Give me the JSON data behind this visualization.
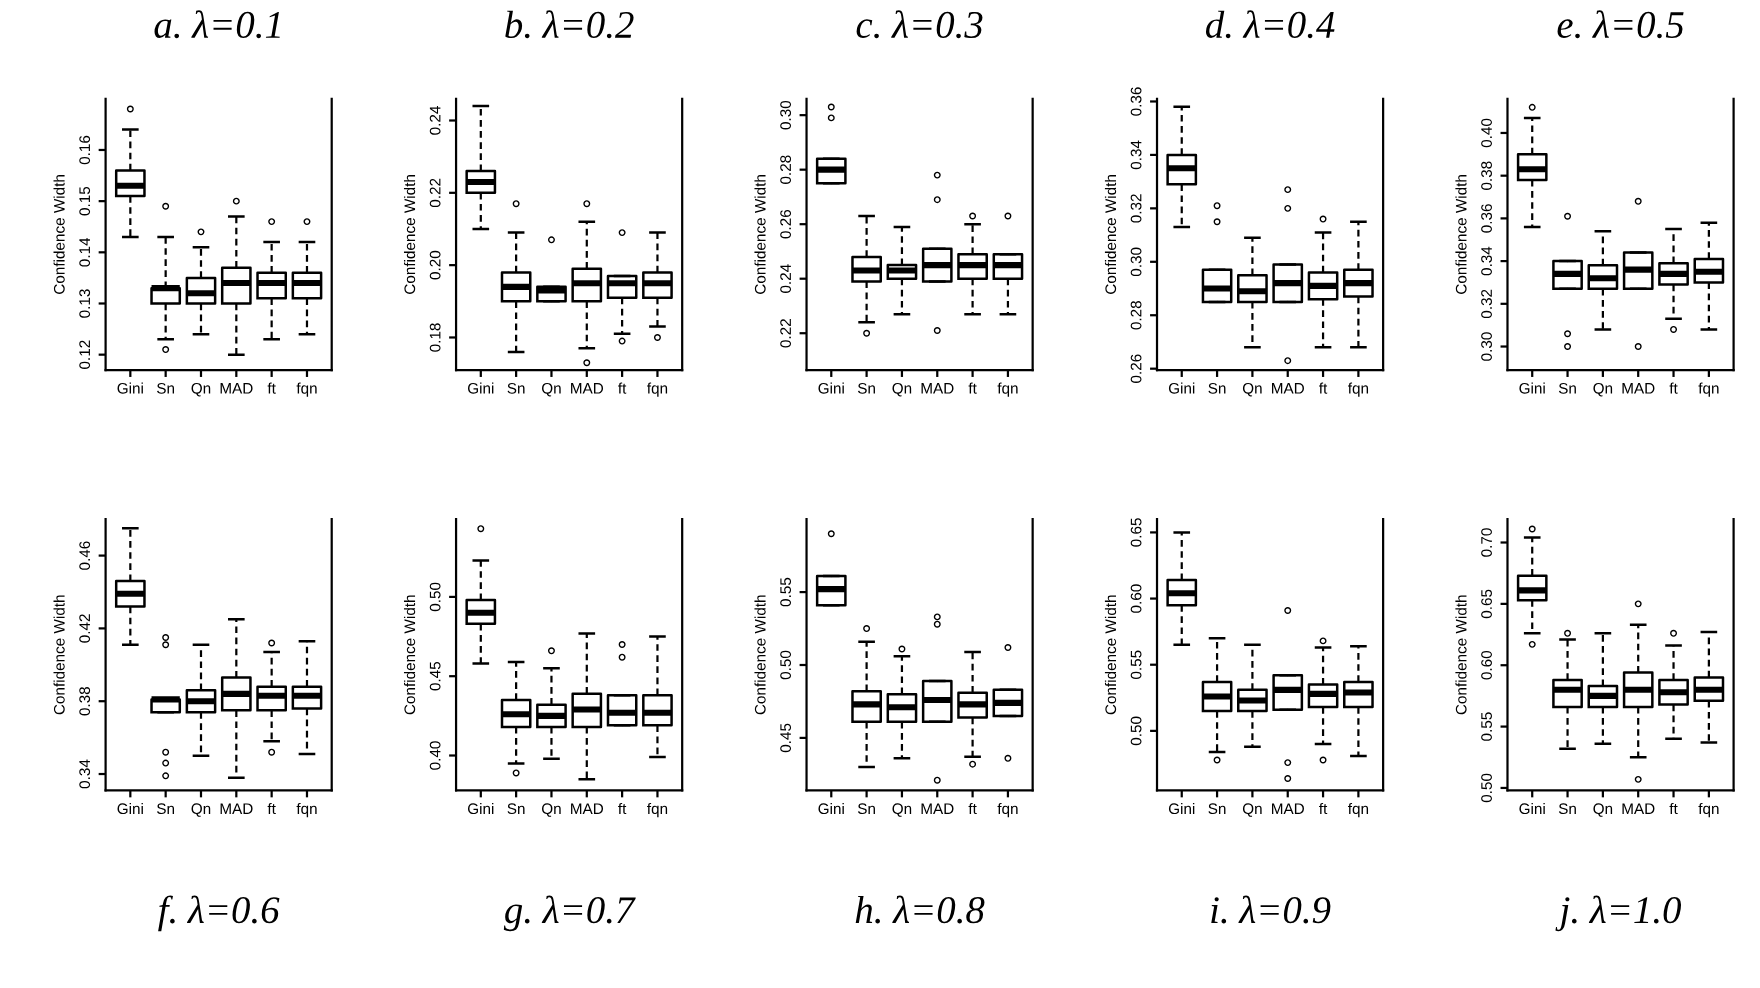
{
  "chart_data": [
    {
      "type": "box",
      "title": "a. λ=0.1",
      "ylabel": "Confidence Width",
      "categories": [
        "Gini",
        "Sn",
        "Qn",
        "MAD",
        "ft",
        "fqn"
      ],
      "ylim": [
        0.117,
        0.17
      ],
      "yticks": [
        0.12,
        0.13,
        0.14,
        0.15,
        0.16
      ],
      "boxes": [
        {
          "low": 0.143,
          "q1": 0.151,
          "median": 0.153,
          "q3": 0.156,
          "high": 0.164,
          "outliers": [
            0.168
          ]
        },
        {
          "low": 0.123,
          "q1": 0.13,
          "median": 0.133,
          "q3": 0.133,
          "high": 0.143,
          "outliers": [
            0.149,
            0.121
          ]
        },
        {
          "low": 0.124,
          "q1": 0.13,
          "median": 0.132,
          "q3": 0.135,
          "high": 0.141,
          "outliers": [
            0.144
          ]
        },
        {
          "low": 0.12,
          "q1": 0.13,
          "median": 0.134,
          "q3": 0.137,
          "high": 0.147,
          "outliers": [
            0.15
          ]
        },
        {
          "low": 0.123,
          "q1": 0.131,
          "median": 0.134,
          "q3": 0.136,
          "high": 0.142,
          "outliers": [
            0.146
          ]
        },
        {
          "low": 0.124,
          "q1": 0.131,
          "median": 0.134,
          "q3": 0.136,
          "high": 0.142,
          "outliers": [
            0.146
          ]
        }
      ]
    },
    {
      "type": "box",
      "title": "b. λ=0.2",
      "ylabel": "Confidence Width",
      "categories": [
        "Gini",
        "Sn",
        "Qn",
        "MAD",
        "ft",
        "fqn"
      ],
      "ylim": [
        0.171,
        0.246
      ],
      "yticks": [
        0.18,
        {
          "value": 0.2,
          "label": "0.20"
        },
        0.22,
        0.24
      ],
      "boxes": [
        {
          "low": 0.21,
          "q1": 0.22,
          "median": 0.223,
          "q3": 0.226,
          "high": 0.244
        },
        {
          "low": 0.176,
          "q1": 0.19,
          "median": 0.194,
          "q3": 0.198,
          "high": 0.209,
          "outliers": [
            0.217
          ]
        },
        {
          "low": 0.19,
          "q1": 0.19,
          "median": 0.193,
          "q3": 0.194,
          "high": 0.194,
          "outliers": [
            0.207
          ]
        },
        {
          "low": 0.177,
          "q1": 0.19,
          "median": 0.195,
          "q3": 0.199,
          "high": 0.212,
          "outliers": [
            0.173,
            0.217
          ]
        },
        {
          "low": 0.181,
          "q1": 0.191,
          "median": 0.195,
          "q3": 0.197,
          "high": 0.197,
          "outliers": [
            0.179,
            0.209
          ]
        },
        {
          "low": 0.183,
          "q1": 0.191,
          "median": 0.195,
          "q3": 0.198,
          "high": 0.209,
          "outliers": [
            0.18
          ]
        }
      ]
    },
    {
      "type": "box",
      "title": "c. λ=0.3",
      "ylabel": "Confidence Width",
      "categories": [
        "Gini",
        "Sn",
        "Qn",
        "MAD",
        "ft",
        "fqn"
      ],
      "ylim": [
        0.2065,
        0.306
      ],
      "yticks": [
        0.22,
        0.24,
        0.26,
        0.28,
        {
          "value": 0.3,
          "label": "0.30"
        }
      ],
      "boxes": [
        {
          "low": 0.275,
          "q1": 0.275,
          "median": 0.28,
          "q3": 0.284,
          "high": 0.284,
          "outliers": [
            0.299,
            0.303
          ]
        },
        {
          "low": 0.224,
          "q1": 0.239,
          "median": 0.243,
          "q3": 0.248,
          "high": 0.263,
          "outliers": [
            0.22
          ]
        },
        {
          "low": 0.227,
          "q1": 0.24,
          "median": 0.243,
          "q3": 0.245,
          "high": 0.259
        },
        {
          "low": 0.239,
          "q1": 0.239,
          "median": 0.245,
          "q3": 0.251,
          "high": 0.251,
          "outliers": [
            0.221,
            0.269,
            0.278
          ]
        },
        {
          "low": 0.227,
          "q1": 0.24,
          "median": 0.245,
          "q3": 0.249,
          "high": 0.26,
          "outliers": [
            0.263
          ]
        },
        {
          "low": 0.227,
          "q1": 0.24,
          "median": 0.245,
          "q3": 0.249,
          "high": 0.249,
          "outliers": [
            0.263
          ]
        }
      ]
    },
    {
      "type": "box",
      "title": "d. λ=0.4",
      "ylabel": "Confidence Width",
      "categories": [
        "Gini",
        "Sn",
        "Qn",
        "MAD",
        "ft",
        "fqn"
      ],
      "ylim": [
        0.2595,
        0.361
      ],
      "yticks": [
        0.26,
        0.28,
        {
          "value": 0.3,
          "label": "0.30"
        },
        0.32,
        0.34,
        0.36
      ],
      "boxes": [
        {
          "low": 0.313,
          "q1": 0.329,
          "median": 0.335,
          "q3": 0.34,
          "high": 0.358
        },
        {
          "low": 0.285,
          "q1": 0.285,
          "median": 0.29,
          "q3": 0.297,
          "high": 0.297,
          "outliers": [
            0.315,
            0.321
          ]
        },
        {
          "low": 0.268,
          "q1": 0.285,
          "median": 0.289,
          "q3": 0.295,
          "high": 0.309
        },
        {
          "low": 0.285,
          "q1": 0.285,
          "median": 0.292,
          "q3": 0.299,
          "high": 0.299,
          "outliers": [
            0.32,
            0.327,
            0.263
          ]
        },
        {
          "low": 0.268,
          "q1": 0.286,
          "median": 0.291,
          "q3": 0.296,
          "high": 0.311,
          "outliers": [
            0.316
          ]
        },
        {
          "low": 0.268,
          "q1": 0.287,
          "median": 0.292,
          "q3": 0.297,
          "high": 0.315
        }
      ]
    },
    {
      "type": "box",
      "title": "e. λ=0.5",
      "ylabel": "Confidence Width",
      "categories": [
        "Gini",
        "Sn",
        "Qn",
        "MAD",
        "ft",
        "fqn"
      ],
      "ylim": [
        0.289,
        0.416
      ],
      "yticks": [
        {
          "value": 0.3,
          "label": "0.30"
        },
        0.32,
        0.34,
        0.36,
        0.38,
        {
          "value": 0.4,
          "label": "0.40"
        }
      ],
      "boxes": [
        {
          "low": 0.356,
          "q1": 0.378,
          "median": 0.383,
          "q3": 0.39,
          "high": 0.407,
          "outliers": [
            0.412
          ]
        },
        {
          "low": 0.327,
          "q1": 0.327,
          "median": 0.334,
          "q3": 0.34,
          "high": 0.34,
          "outliers": [
            0.361,
            0.306,
            0.3
          ]
        },
        {
          "low": 0.308,
          "q1": 0.327,
          "median": 0.332,
          "q3": 0.338,
          "high": 0.354
        },
        {
          "low": 0.327,
          "q1": 0.327,
          "median": 0.336,
          "q3": 0.344,
          "high": 0.344,
          "outliers": [
            0.368,
            0.3
          ]
        },
        {
          "low": 0.313,
          "q1": 0.329,
          "median": 0.334,
          "q3": 0.339,
          "high": 0.355,
          "outliers": [
            0.308
          ]
        },
        {
          "low": 0.308,
          "q1": 0.33,
          "median": 0.335,
          "q3": 0.341,
          "high": 0.358
        }
      ]
    },
    {
      "type": "box",
      "title": "f. λ=0.6",
      "ylabel": "Confidence Width",
      "categories": [
        "Gini",
        "Sn",
        "Qn",
        "MAD",
        "ft",
        "fqn"
      ],
      "ylim": [
        0.331,
        0.48
      ],
      "yticks": [
        0.34,
        0.38,
        0.42,
        0.46
      ],
      "boxes": [
        {
          "low": 0.411,
          "q1": 0.432,
          "median": 0.439,
          "q3": 0.446,
          "high": 0.475
        },
        {
          "low": 0.374,
          "q1": 0.374,
          "median": 0.381,
          "q3": 0.381,
          "high": 0.381,
          "outliers": [
            0.411,
            0.415,
            0.352,
            0.346,
            0.339
          ]
        },
        {
          "low": 0.35,
          "q1": 0.374,
          "median": 0.38,
          "q3": 0.386,
          "high": 0.411
        },
        {
          "low": 0.338,
          "q1": 0.375,
          "median": 0.384,
          "q3": 0.393,
          "high": 0.425
        },
        {
          "low": 0.358,
          "q1": 0.375,
          "median": 0.383,
          "q3": 0.388,
          "high": 0.407,
          "outliers": [
            0.352,
            0.412
          ]
        },
        {
          "low": 0.351,
          "q1": 0.376,
          "median": 0.383,
          "q3": 0.388,
          "high": 0.413
        }
      ]
    },
    {
      "type": "box",
      "title": "g. λ=0.7",
      "ylabel": "Confidence Width",
      "categories": [
        "Gini",
        "Sn",
        "Qn",
        "MAD",
        "ft",
        "fqn"
      ],
      "ylim": [
        0.378,
        0.549
      ],
      "yticks": [
        {
          "value": 0.4,
          "label": "0.40"
        },
        0.45,
        {
          "value": 0.5,
          "label": "0.50"
        }
      ],
      "boxes": [
        {
          "low": 0.458,
          "q1": 0.483,
          "median": 0.49,
          "q3": 0.498,
          "high": 0.523,
          "outliers": [
            0.543
          ]
        },
        {
          "low": 0.395,
          "q1": 0.418,
          "median": 0.426,
          "q3": 0.435,
          "high": 0.459,
          "outliers": [
            0.389
          ]
        },
        {
          "low": 0.398,
          "q1": 0.418,
          "median": 0.425,
          "q3": 0.432,
          "high": 0.455,
          "outliers": [
            0.466
          ]
        },
        {
          "low": 0.385,
          "q1": 0.418,
          "median": 0.429,
          "q3": 0.439,
          "high": 0.477
        },
        {
          "low": 0.419,
          "q1": 0.419,
          "median": 0.427,
          "q3": 0.438,
          "high": 0.438,
          "outliers": [
            0.462,
            0.47
          ]
        },
        {
          "low": 0.399,
          "q1": 0.419,
          "median": 0.427,
          "q3": 0.438,
          "high": 0.475
        }
      ]
    },
    {
      "type": "box",
      "title": "h. λ=0.8",
      "ylabel": "Confidence Width",
      "categories": [
        "Gini",
        "Sn",
        "Qn",
        "MAD",
        "ft",
        "fqn"
      ],
      "ylim": [
        0.414,
        0.6
      ],
      "yticks": [
        0.45,
        {
          "value": 0.5,
          "label": "0.50"
        },
        0.55
      ],
      "boxes": [
        {
          "low": 0.541,
          "q1": 0.541,
          "median": 0.552,
          "q3": 0.561,
          "high": 0.561,
          "outliers": [
            0.59
          ]
        },
        {
          "low": 0.43,
          "q1": 0.461,
          "median": 0.473,
          "q3": 0.482,
          "high": 0.516,
          "outliers": [
            0.525
          ]
        },
        {
          "low": 0.436,
          "q1": 0.461,
          "median": 0.471,
          "q3": 0.48,
          "high": 0.506,
          "outliers": [
            0.511
          ]
        },
        {
          "low": 0.461,
          "q1": 0.461,
          "median": 0.476,
          "q3": 0.489,
          "high": 0.489,
          "outliers": [
            0.421,
            0.528,
            0.533
          ]
        },
        {
          "low": 0.437,
          "q1": 0.464,
          "median": 0.473,
          "q3": 0.481,
          "high": 0.509,
          "outliers": [
            0.432
          ]
        },
        {
          "low": 0.465,
          "q1": 0.465,
          "median": 0.474,
          "q3": 0.483,
          "high": 0.483,
          "outliers": [
            0.436,
            0.512
          ]
        }
      ]
    },
    {
      "type": "box",
      "title": "i. λ=0.9",
      "ylabel": "Confidence Width",
      "categories": [
        "Gini",
        "Sn",
        "Qn",
        "MAD",
        "ft",
        "fqn"
      ],
      "ylim": [
        0.455,
        0.66
      ],
      "yticks": [
        {
          "value": 0.5,
          "label": "0.50"
        },
        0.55,
        {
          "value": 0.6,
          "label": "0.60"
        },
        0.65
      ],
      "boxes": [
        {
          "low": 0.565,
          "q1": 0.595,
          "median": 0.604,
          "q3": 0.614,
          "high": 0.65
        },
        {
          "low": 0.484,
          "q1": 0.515,
          "median": 0.526,
          "q3": 0.537,
          "high": 0.57,
          "outliers": [
            0.478
          ]
        },
        {
          "low": 0.488,
          "q1": 0.515,
          "median": 0.523,
          "q3": 0.531,
          "high": 0.565
        },
        {
          "low": 0.516,
          "q1": 0.516,
          "median": 0.531,
          "q3": 0.542,
          "high": 0.542,
          "outliers": [
            0.591,
            0.476,
            0.464
          ]
        },
        {
          "low": 0.49,
          "q1": 0.518,
          "median": 0.528,
          "q3": 0.535,
          "high": 0.563,
          "outliers": [
            0.478,
            0.568
          ]
        },
        {
          "low": 0.481,
          "q1": 0.518,
          "median": 0.529,
          "q3": 0.537,
          "high": 0.564
        }
      ]
    },
    {
      "type": "box",
      "title": "j. λ=1.0",
      "ylabel": "Confidence Width",
      "categories": [
        "Gini",
        "Sn",
        "Qn",
        "MAD",
        "ft",
        "fqn"
      ],
      "ylim": [
        0.498,
        0.719
      ],
      "yticks": [
        {
          "value": 0.5,
          "label": "0.50"
        },
        0.55,
        {
          "value": 0.6,
          "label": "0.60"
        },
        0.65,
        {
          "value": 0.7,
          "label": "0.70"
        }
      ],
      "boxes": [
        {
          "low": 0.626,
          "q1": 0.653,
          "median": 0.661,
          "q3": 0.673,
          "high": 0.704,
          "outliers": [
            0.617,
            0.711
          ]
        },
        {
          "low": 0.532,
          "q1": 0.566,
          "median": 0.58,
          "q3": 0.588,
          "high": 0.621,
          "outliers": [
            0.626
          ]
        },
        {
          "low": 0.536,
          "q1": 0.566,
          "median": 0.575,
          "q3": 0.583,
          "high": 0.626
        },
        {
          "low": 0.525,
          "q1": 0.566,
          "median": 0.58,
          "q3": 0.594,
          "high": 0.633,
          "outliers": [
            0.65,
            0.507
          ]
        },
        {
          "low": 0.54,
          "q1": 0.568,
          "median": 0.578,
          "q3": 0.588,
          "high": 0.616,
          "outliers": [
            0.626
          ]
        },
        {
          "low": 0.537,
          "q1": 0.571,
          "median": 0.58,
          "q3": 0.59,
          "high": 0.627
        }
      ]
    }
  ]
}
